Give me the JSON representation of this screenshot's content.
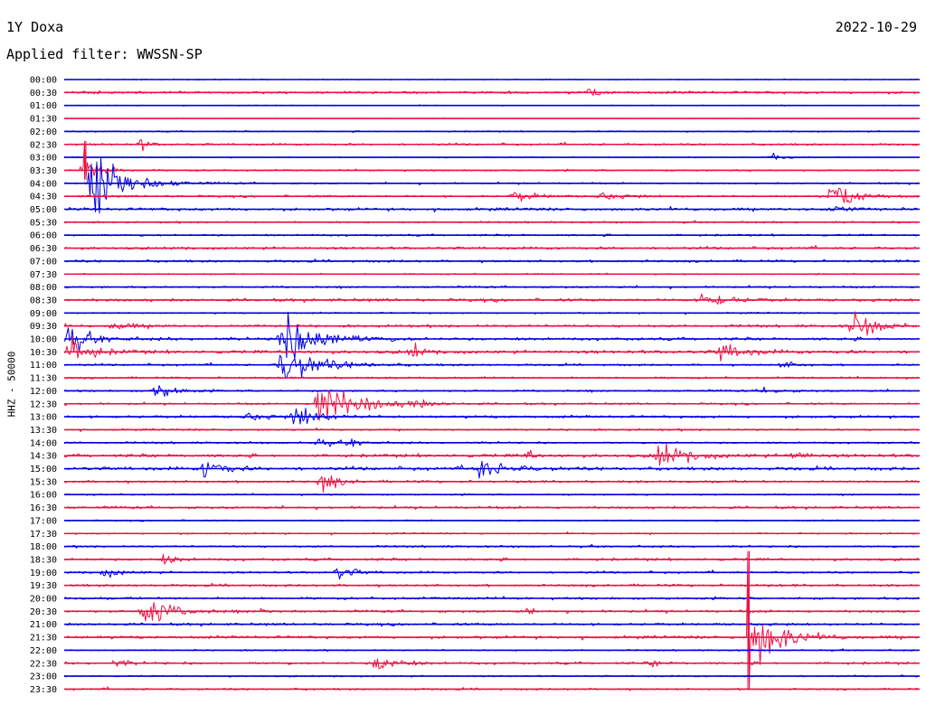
{
  "header": {
    "station": "1Y Doxa",
    "date": "2022-10-29",
    "filter": "Applied filter: WWSSN-SP"
  },
  "side_label": "HHZ - 50000",
  "colors": {
    "a": "#0000dd",
    "b": "#ee1144"
  },
  "chart_data": {
    "type": "line",
    "title": "",
    "xlabel": "",
    "ylabel": "HHZ - 50000",
    "rows": [
      "00:00",
      "00:30",
      "01:00",
      "01:30",
      "02:00",
      "02:30",
      "03:00",
      "03:30",
      "04:00",
      "04:30",
      "05:00",
      "05:30",
      "06:00",
      "06:30",
      "07:00",
      "07:30",
      "08:00",
      "08:30",
      "09:00",
      "09:30",
      "10:00",
      "10:30",
      "11:00",
      "11:30",
      "12:00",
      "12:30",
      "13:00",
      "13:30",
      "14:00",
      "14:30",
      "15:00",
      "15:30",
      "16:00",
      "16:30",
      "17:00",
      "17:30",
      "18:00",
      "18:30",
      "19:00",
      "19:30",
      "20:00",
      "20:30",
      "21:00",
      "21:30",
      "22:00",
      "22:30",
      "23:00",
      "23:30"
    ],
    "row_minutes": 30,
    "x_range_minutes": [
      0,
      30
    ],
    "noise": [
      0.5,
      1.6,
      0.5,
      0.3,
      0.8,
      1.2,
      0.6,
      1.0,
      1.0,
      1.2,
      1.8,
      1.0,
      1.2,
      1.5,
      1.5,
      0.8,
      1.2,
      1.8,
      0.9,
      1.6,
      1.8,
      2.0,
      1.2,
      1.2,
      1.2,
      1.2,
      1.6,
      1.2,
      1.2,
      2.0,
      2.0,
      1.5,
      1.0,
      1.5,
      0.8,
      1.0,
      1.2,
      1.6,
      1.2,
      1.5,
      1.5,
      1.5,
      1.5,
      1.8,
      0.9,
      1.5,
      0.9,
      1.2
    ],
    "events": [
      {
        "row": 1,
        "t": 18.3,
        "amp": 5,
        "dur": 0.6
      },
      {
        "row": 5,
        "t": 2.6,
        "amp": 6,
        "dur": 0.5
      },
      {
        "row": 6,
        "t": 24.7,
        "amp": 4,
        "dur": 0.9
      },
      {
        "row": 7,
        "t": 0.6,
        "amp": 14,
        "dur": 1.2
      },
      {
        "row": 8,
        "t": 0.9,
        "amp": 48,
        "dur": 2.0
      },
      {
        "row": 9,
        "t": 15.7,
        "amp": 5,
        "dur": 1.5
      },
      {
        "row": 9,
        "t": 18.6,
        "amp": 4,
        "dur": 1.6
      },
      {
        "row": 9,
        "t": 26.8,
        "amp": 16,
        "dur": 1.6
      },
      {
        "row": 10,
        "t": 26.7,
        "amp": 4,
        "dur": 1.5
      },
      {
        "row": 17,
        "t": 22.3,
        "amp": 10,
        "dur": 1.5
      },
      {
        "row": 19,
        "t": 27.5,
        "amp": 14,
        "dur": 1.8
      },
      {
        "row": 19,
        "t": 1.6,
        "amp": 4,
        "dur": 1.5
      },
      {
        "row": 20,
        "t": 7.5,
        "amp": 28,
        "dur": 2.5
      },
      {
        "row": 20,
        "t": 0.0,
        "amp": 14,
        "dur": 1.5
      },
      {
        "row": 21,
        "t": 0.1,
        "amp": 14,
        "dur": 1.5
      },
      {
        "row": 21,
        "t": 12.1,
        "amp": 8,
        "dur": 0.6
      },
      {
        "row": 21,
        "t": 22.9,
        "amp": 10,
        "dur": 1.5
      },
      {
        "row": 22,
        "t": 7.5,
        "amp": 20,
        "dur": 2.5
      },
      {
        "row": 22,
        "t": 25.1,
        "amp": 4,
        "dur": 1.0
      },
      {
        "row": 24,
        "t": 3.1,
        "amp": 10,
        "dur": 1.2
      },
      {
        "row": 24,
        "t": 24.4,
        "amp": 4,
        "dur": 1.0
      },
      {
        "row": 25,
        "t": 8.8,
        "amp": 28,
        "dur": 2.5
      },
      {
        "row": 25,
        "t": 12.1,
        "amp": 4,
        "dur": 1.0
      },
      {
        "row": 26,
        "t": 8.0,
        "amp": 12,
        "dur": 1.6
      },
      {
        "row": 26,
        "t": 6.2,
        "amp": 4,
        "dur": 1.5
      },
      {
        "row": 28,
        "t": 8.7,
        "amp": 5,
        "dur": 1.0
      },
      {
        "row": 28,
        "t": 9.9,
        "amp": 4,
        "dur": 0.8
      },
      {
        "row": 29,
        "t": 20.7,
        "amp": 12,
        "dur": 2.0
      },
      {
        "row": 29,
        "t": 25.4,
        "amp": 5,
        "dur": 1.0
      },
      {
        "row": 29,
        "t": 16.1,
        "amp": 5,
        "dur": 0.6
      },
      {
        "row": 30,
        "t": 4.8,
        "amp": 12,
        "dur": 1.2
      },
      {
        "row": 30,
        "t": 14.4,
        "amp": 10,
        "dur": 2.0
      },
      {
        "row": 31,
        "t": 8.9,
        "amp": 9,
        "dur": 1.2
      },
      {
        "row": 37,
        "t": 3.4,
        "amp": 5,
        "dur": 1.0
      },
      {
        "row": 38,
        "t": 1.3,
        "amp": 5,
        "dur": 1.2
      },
      {
        "row": 38,
        "t": 9.5,
        "amp": 6,
        "dur": 1.2
      },
      {
        "row": 41,
        "t": 2.7,
        "amp": 17,
        "dur": 1.8
      },
      {
        "row": 41,
        "t": 6.8,
        "amp": 3,
        "dur": 0.8
      },
      {
        "row": 41,
        "t": 16.1,
        "amp": 3,
        "dur": 0.5
      },
      {
        "row": 43,
        "t": 24.1,
        "amp": 30,
        "dur": 2.0
      },
      {
        "row": 45,
        "t": 1.7,
        "amp": 4,
        "dur": 0.8
      },
      {
        "row": 45,
        "t": 10.8,
        "amp": 10,
        "dur": 1.4
      },
      {
        "row": 45,
        "t": 20.5,
        "amp": 3,
        "dur": 0.8
      }
    ],
    "spikes": [
      {
        "row": 7,
        "t": 0.75,
        "up": 32,
        "down": 10
      },
      {
        "row": 41,
        "t": 24.0,
        "up": 10,
        "down": 3
      },
      {
        "row": 43,
        "t": 24.0,
        "up": 95,
        "down": 58
      }
    ],
    "grid": false,
    "legend": "none"
  }
}
